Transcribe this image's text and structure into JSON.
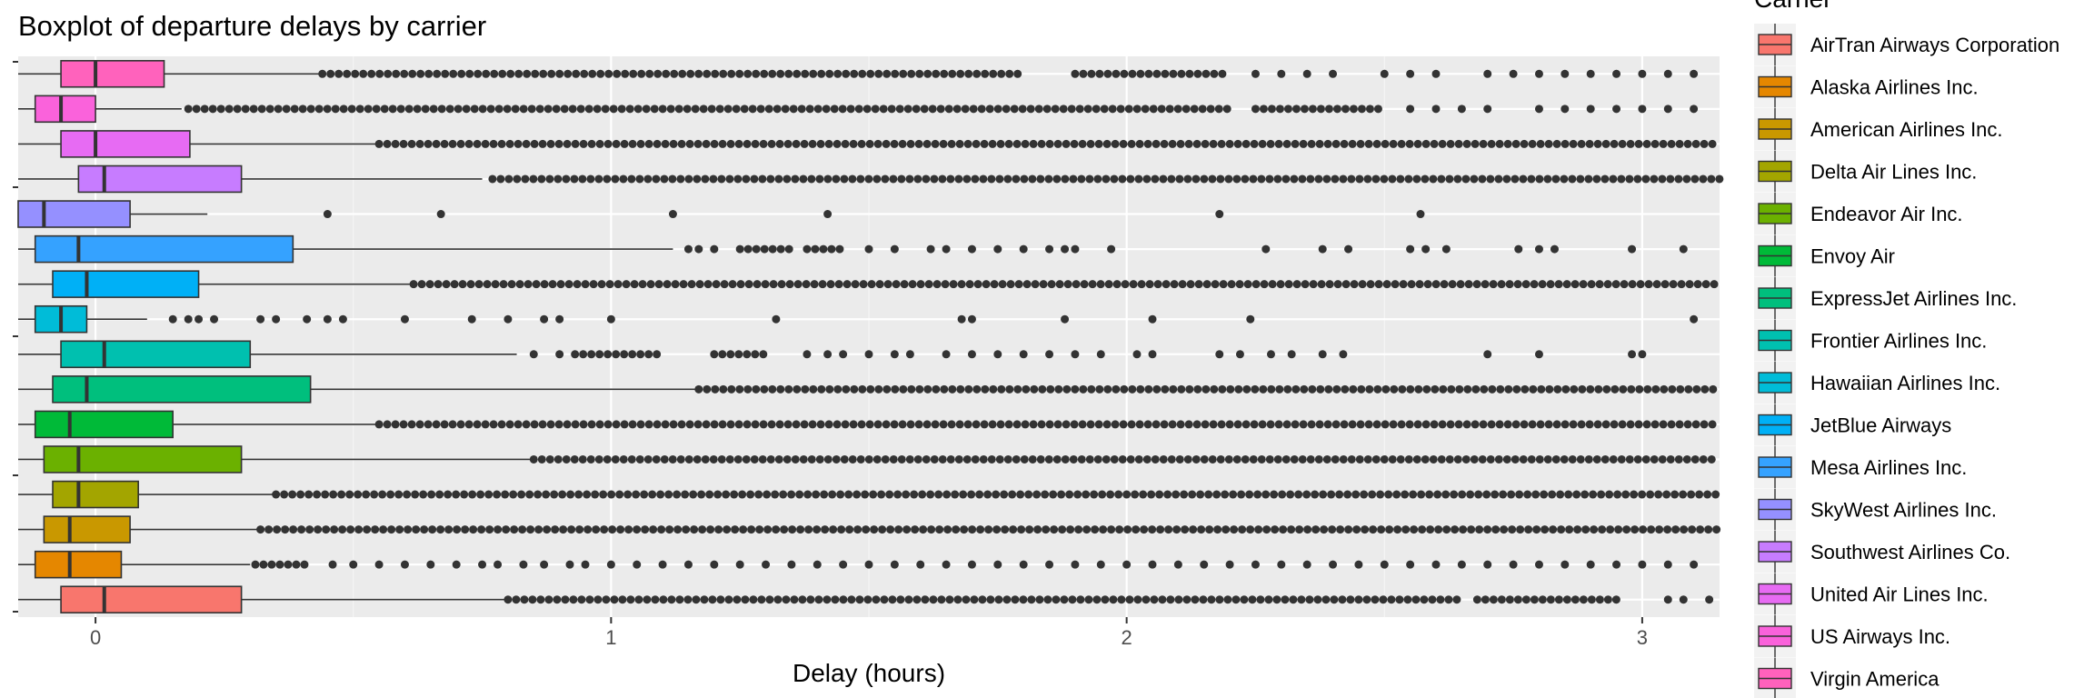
{
  "chart_data": {
    "type": "boxplot",
    "title": "Boxplot of departure delays by carrier",
    "xlabel": "Delay (hours)",
    "ylabel": "",
    "xlim": [
      -0.15,
      3.15
    ],
    "x_ticks": [
      0,
      1,
      2,
      3
    ],
    "legend_title": "Carrier",
    "legend_position": "right",
    "grid": true,
    "series": [
      {
        "name": "AirTran Airways Corporation",
        "color": "#F8766D",
        "q1": -0.067,
        "median": 0.017,
        "q3": 0.283,
        "whisker_low": -0.15,
        "whisker_high": 0.8,
        "outlier_ranges": [
          [
            0.8,
            2.65
          ],
          [
            2.68,
            2.95
          ]
        ],
        "outliers": [
          3.05,
          3.08,
          3.13
        ]
      },
      {
        "name": "Alaska Airlines Inc.",
        "color": "#E58700",
        "q1": -0.117,
        "median": -0.05,
        "q3": 0.05,
        "whisker_low": -0.15,
        "whisker_high": 0.3,
        "outlier_ranges": [
          [
            0.31,
            0.42
          ]
        ],
        "outliers": [
          0.46,
          0.5,
          0.55,
          0.6,
          0.65,
          0.7,
          0.75,
          0.78,
          0.83,
          0.87,
          0.92,
          0.95,
          1.0,
          1.05,
          1.1,
          1.15,
          1.2,
          1.25,
          1.3,
          1.35,
          1.4,
          1.45,
          1.5,
          1.55,
          1.6,
          1.65,
          1.7,
          1.75,
          1.8,
          1.85,
          1.9,
          1.95,
          2.0,
          2.05,
          2.1,
          2.15,
          2.2,
          2.25,
          2.3,
          2.35,
          2.4,
          2.45,
          2.5,
          2.55,
          2.6,
          2.65,
          2.7,
          2.75,
          2.8,
          2.85,
          2.9,
          2.95,
          3.0,
          3.05,
          3.1
        ]
      },
      {
        "name": "American Airlines Inc.",
        "color": "#C99800",
        "q1": -0.1,
        "median": -0.05,
        "q3": 0.067,
        "whisker_low": -0.15,
        "whisker_high": 0.32,
        "outlier_ranges": [
          [
            0.32,
            3.15
          ]
        ],
        "outliers": []
      },
      {
        "name": "Delta Air Lines Inc.",
        "color": "#A3A500",
        "q1": -0.083,
        "median": -0.033,
        "q3": 0.083,
        "whisker_low": -0.15,
        "whisker_high": 0.35,
        "outlier_ranges": [
          [
            0.35,
            3.15
          ]
        ],
        "outliers": []
      },
      {
        "name": "Endeavor Air Inc.",
        "color": "#6BB100",
        "q1": -0.1,
        "median": -0.033,
        "q3": 0.283,
        "whisker_low": -0.15,
        "whisker_high": 0.85,
        "outlier_ranges": [
          [
            0.85,
            3.15
          ]
        ],
        "outliers": []
      },
      {
        "name": "Envoy Air",
        "color": "#00BA38",
        "q1": -0.117,
        "median": -0.05,
        "q3": 0.15,
        "whisker_low": -0.15,
        "whisker_high": 0.55,
        "outlier_ranges": [
          [
            0.55,
            3.15
          ]
        ],
        "outliers": []
      },
      {
        "name": "ExpressJet Airlines Inc.",
        "color": "#00BF7D",
        "q1": -0.083,
        "median": -0.017,
        "q3": 0.417,
        "whisker_low": -0.15,
        "whisker_high": 1.17,
        "outlier_ranges": [
          [
            1.17,
            3.15
          ]
        ],
        "outliers": []
      },
      {
        "name": "Frontier Airlines Inc.",
        "color": "#00C0AF",
        "q1": -0.067,
        "median": 0.017,
        "q3": 0.3,
        "whisker_low": -0.15,
        "whisker_high": 0.817,
        "outlier_ranges": [
          [
            0.93,
            1.1
          ],
          [
            1.2,
            1.3
          ]
        ],
        "outliers": [
          0.85,
          0.9,
          1.38,
          1.42,
          1.45,
          1.5,
          1.55,
          1.58,
          1.65,
          1.7,
          1.75,
          1.8,
          1.85,
          1.9,
          1.95,
          2.02,
          2.05,
          2.18,
          2.22,
          2.28,
          2.32,
          2.38,
          2.42,
          2.7,
          2.8,
          2.98,
          3.0
        ]
      },
      {
        "name": "Hawaiian Airlines Inc.",
        "color": "#00BCD8",
        "q1": -0.117,
        "median": -0.067,
        "q3": -0.017,
        "whisker_low": -0.15,
        "whisker_high": 0.1,
        "outlier_ranges": [],
        "outliers": [
          0.15,
          0.18,
          0.2,
          0.23,
          0.32,
          0.35,
          0.41,
          0.45,
          0.48,
          0.6,
          0.73,
          0.8,
          0.87,
          0.9,
          1.0,
          1.32,
          1.68,
          1.7,
          1.88,
          2.05,
          2.24,
          3.1
        ]
      },
      {
        "name": "JetBlue Airways",
        "color": "#00B0F6",
        "q1": -0.083,
        "median": -0.017,
        "q3": 0.2,
        "whisker_low": -0.15,
        "whisker_high": 0.617,
        "outlier_ranges": [
          [
            0.617,
            3.15
          ]
        ],
        "outliers": []
      },
      {
        "name": "Mesa Airlines Inc.",
        "color": "#35A2FF",
        "q1": -0.117,
        "median": -0.033,
        "q3": 0.383,
        "whisker_low": -0.15,
        "whisker_high": 1.12,
        "outlier_ranges": [
          [
            1.25,
            1.35
          ],
          [
            1.38,
            1.45
          ]
        ],
        "outliers": [
          1.15,
          1.17,
          1.2,
          1.5,
          1.55,
          1.62,
          1.65,
          1.7,
          1.75,
          1.8,
          1.85,
          1.88,
          1.9,
          1.97,
          2.27,
          2.38,
          2.43,
          2.55,
          2.58,
          2.62,
          2.76,
          2.8,
          2.83,
          2.98,
          3.08
        ]
      },
      {
        "name": "SkyWest Airlines Inc.",
        "color": "#9590FF",
        "q1": -0.15,
        "median": -0.1,
        "q3": 0.067,
        "whisker_low": -0.15,
        "whisker_high": 0.217,
        "outlier_ranges": [],
        "outliers": [
          0.45,
          0.67,
          1.12,
          1.42,
          2.18,
          2.57
        ]
      },
      {
        "name": "Southwest Airlines Co.",
        "color": "#C77CFF",
        "q1": -0.033,
        "median": 0.017,
        "q3": 0.283,
        "whisker_low": -0.15,
        "whisker_high": 0.75,
        "outlier_ranges": [
          [
            0.77,
            3.15
          ]
        ],
        "outliers": []
      },
      {
        "name": "United Air Lines Inc.",
        "color": "#E76BF3",
        "q1": -0.067,
        "median": 0.0,
        "q3": 0.183,
        "whisker_low": -0.15,
        "whisker_high": 0.55,
        "outlier_ranges": [
          [
            0.55,
            3.15
          ]
        ],
        "outliers": []
      },
      {
        "name": "US Airways Inc.",
        "color": "#FA62DB",
        "q1": -0.117,
        "median": -0.067,
        "q3": 0.0,
        "whisker_low": -0.15,
        "whisker_high": 0.167,
        "outlier_ranges": [
          [
            0.18,
            2.2
          ],
          [
            2.25,
            2.5
          ]
        ],
        "outliers": [
          2.55,
          2.6,
          2.65,
          2.7,
          2.8,
          2.85,
          2.9,
          2.95,
          3.0,
          3.05,
          3.1
        ]
      },
      {
        "name": "Virgin America",
        "color": "#FF62BC",
        "q1": -0.067,
        "median": 0.0,
        "q3": 0.133,
        "whisker_low": -0.15,
        "whisker_high": 0.433,
        "outlier_ranges": [
          [
            0.44,
            1.8
          ],
          [
            1.9,
            2.2
          ]
        ],
        "outliers": [
          2.25,
          2.3,
          2.35,
          2.4,
          2.5,
          2.55,
          2.6,
          2.7,
          2.75,
          2.8,
          2.85,
          2.9,
          2.95,
          3.0,
          3.05,
          3.1
        ]
      }
    ]
  }
}
